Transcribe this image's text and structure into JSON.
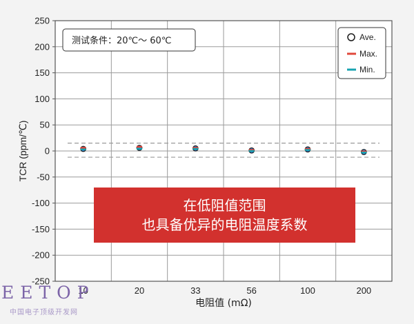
{
  "chart_data": {
    "type": "scatter",
    "ylabel": "TCR (ppm/℃)",
    "xlabel": "电阻值 (mΩ)",
    "categories": [
      "10",
      "20",
      "33",
      "56",
      "100",
      "200"
    ],
    "ylim": [
      -250,
      250
    ],
    "yticks": [
      250,
      200,
      150,
      100,
      50,
      0,
      -50,
      -100,
      -150,
      -200,
      -250
    ],
    "grid": true,
    "legend_position": "top-right",
    "series": [
      {
        "name": "Ave.",
        "marker": "circle",
        "color": "#1a1a1a",
        "values": [
          4,
          6,
          5,
          1,
          3,
          -2
        ]
      },
      {
        "name": "Max.",
        "marker": "dash",
        "color": "#e0483b",
        "values": [
          6,
          8,
          6,
          2,
          4,
          -1
        ]
      },
      {
        "name": "Min.",
        "marker": "dash",
        "color": "#17a3b0",
        "values": [
          3,
          4,
          4,
          0,
          2,
          -3
        ]
      }
    ],
    "reference_lines": [
      15,
      -12
    ],
    "condition_box": "测试条件：20℃～ 60℃"
  },
  "banner": {
    "line1": "在低阻值范围",
    "line2": "也具备优异的电阻温度系数"
  },
  "watermark": {
    "logo": "EETOP",
    "subtitle": "中国电子顶级开发网"
  }
}
